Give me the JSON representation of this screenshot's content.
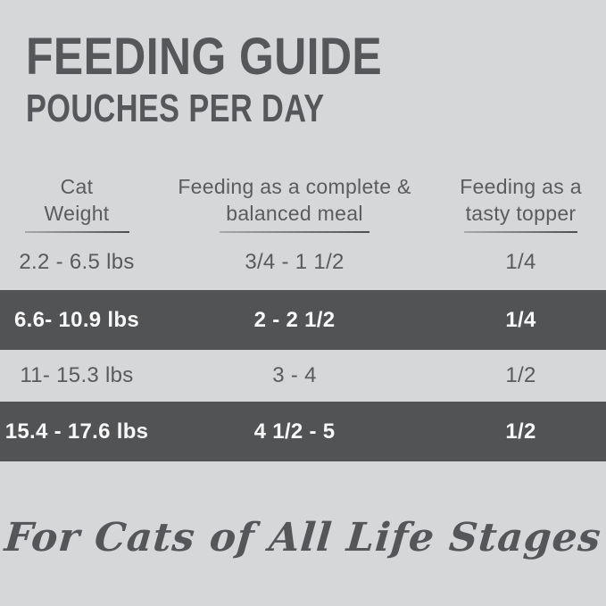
{
  "colors": {
    "background": "#d6d7d8",
    "band_dark": "#525355",
    "text_dark": "#57585a",
    "text_on_dark": "#f8f8f8"
  },
  "header": {
    "title": "FEEDING GUIDE",
    "subtitle": "POUCHES PER DAY"
  },
  "table": {
    "columns": [
      {
        "line1": "Cat",
        "line2": "Weight"
      },
      {
        "line1": "Feeding as a complete &",
        "line2": "balanced meal"
      },
      {
        "line1": "Feeding as a",
        "line2": "tasty topper"
      }
    ],
    "rows": [
      {
        "weight": "2.2 - 6.5 lbs",
        "meal": "3/4 - 1 1/2",
        "topper": "1/4",
        "highlighted": false
      },
      {
        "weight": "6.6- 10.9 lbs",
        "meal": "2 - 2 1/2",
        "topper": "1/4",
        "highlighted": true
      },
      {
        "weight": "11- 15.3 lbs",
        "meal": "3 - 4",
        "topper": "1/2",
        "highlighted": false
      },
      {
        "weight": "15.4 - 17.6 lbs",
        "meal": "4 1/2 - 5",
        "topper": "1/2",
        "highlighted": true
      }
    ]
  },
  "footer": {
    "tagline": "For Cats of All Life Stages"
  }
}
